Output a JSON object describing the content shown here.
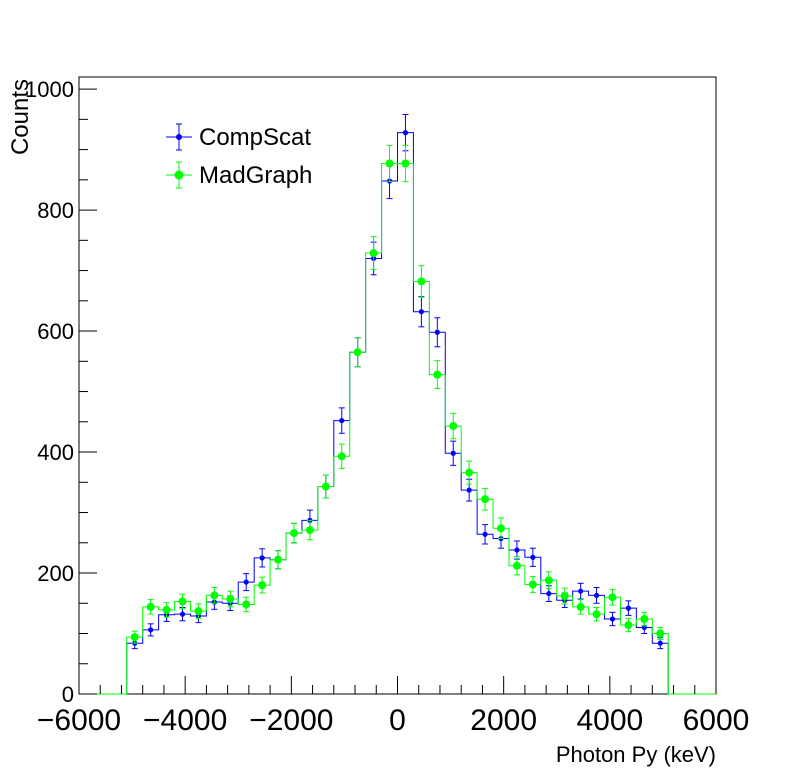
{
  "chart_data": {
    "type": "histogram",
    "title": "",
    "xlabel": "Photon Py (keV)",
    "ylabel": "Counts",
    "xlim": [
      -6000,
      6000
    ],
    "ylim": [
      0,
      1020
    ],
    "x_ticks": [
      -6000,
      -4000,
      -2000,
      0,
      2000,
      4000,
      6000
    ],
    "x_tick_labels": [
      "−6000",
      "−4000",
      "−2000",
      "0",
      "2000",
      "4000",
      "6000"
    ],
    "y_ticks": [
      0,
      200,
      400,
      600,
      800,
      1000
    ],
    "y_tick_labels": [
      "0",
      "200",
      "400",
      "600",
      "800",
      "1000"
    ],
    "bin_low": -5100,
    "bin_width": 300,
    "legend": {
      "position": "top-left"
    },
    "series": [
      {
        "name": "CompScat",
        "color": "#0000ff",
        "marker": "circle-small",
        "values": [
          84,
          106,
          131,
          132,
          129,
          152,
          150,
          185,
          225,
          222,
          266,
          287,
          343,
          452,
          565,
          720,
          848,
          928,
          632,
          598,
          398,
          337,
          264,
          257,
          238,
          226,
          166,
          155,
          170,
          163,
          124,
          142,
          110,
          84
        ],
        "errors": [
          9,
          10,
          11,
          11,
          11,
          12,
          12,
          14,
          15,
          15,
          16,
          17,
          19,
          21,
          24,
          27,
          29,
          30,
          25,
          24,
          20,
          18,
          16,
          16,
          15,
          15,
          13,
          12,
          13,
          13,
          11,
          12,
          10,
          9
        ]
      },
      {
        "name": "MadGraph",
        "color": "#00ff00",
        "marker": "circle-large",
        "values": [
          94,
          144,
          139,
          153,
          137,
          163,
          157,
          148,
          180,
          222,
          266,
          271,
          343,
          393,
          565,
          729,
          877,
          877,
          682,
          528,
          443,
          366,
          322,
          274,
          212,
          181,
          188,
          162,
          144,
          132,
          160,
          114,
          124,
          100
        ],
        "errors": [
          10,
          12,
          12,
          12,
          12,
          13,
          13,
          12,
          13,
          15,
          16,
          16,
          19,
          20,
          24,
          27,
          30,
          30,
          26,
          23,
          21,
          19,
          18,
          17,
          15,
          13,
          14,
          13,
          12,
          11,
          13,
          11,
          11,
          10
        ]
      }
    ]
  }
}
